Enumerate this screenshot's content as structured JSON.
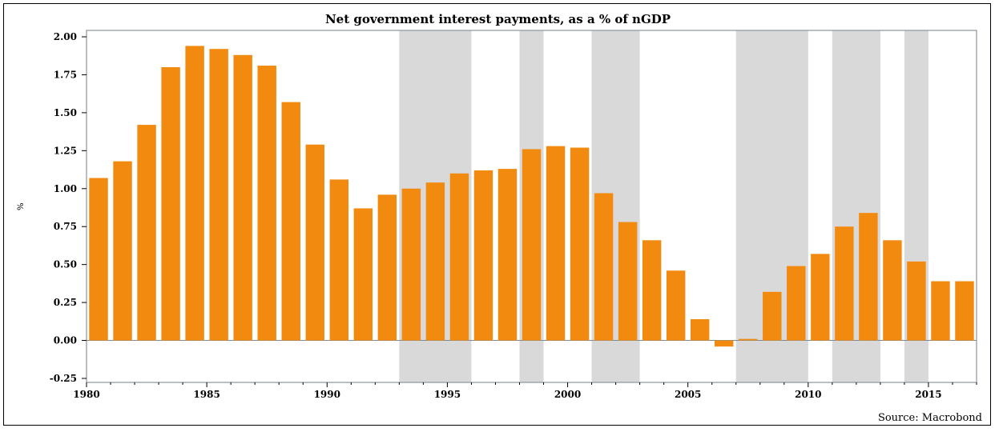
{
  "chart_data": {
    "type": "bar",
    "title": "Net government interest payments, as a % of nGDP",
    "ylabel": "%",
    "source": "Source: Macrobond",
    "ylim": [
      -0.25,
      2.0
    ],
    "xlim": [
      1980,
      2017
    ],
    "yticks": [
      "2.00",
      "1.75",
      "1.50",
      "1.25",
      "1.00",
      "0.75",
      "0.50",
      "0.25",
      "0.00",
      "-0.25"
    ],
    "xticks": [
      "1980",
      "1985",
      "1990",
      "1995",
      "2000",
      "2005",
      "2010",
      "2015"
    ],
    "bar_color": "#F28A0F",
    "shade_color": "#D9D9D9",
    "shaded_periods": [
      [
        1993,
        1996
      ],
      [
        1998,
        1999
      ],
      [
        2001,
        2003
      ],
      [
        2007,
        2010
      ],
      [
        2011,
        2013
      ],
      [
        2014,
        2015
      ]
    ],
    "categories": [
      1980,
      1981,
      1982,
      1983,
      1984,
      1985,
      1986,
      1987,
      1988,
      1989,
      1990,
      1991,
      1992,
      1993,
      1994,
      1995,
      1996,
      1997,
      1998,
      1999,
      2000,
      2001,
      2002,
      2003,
      2004,
      2005,
      2006,
      2007,
      2008,
      2009,
      2010,
      2011,
      2012,
      2013,
      2014,
      2015,
      2016
    ],
    "values": [
      1.07,
      1.18,
      1.42,
      1.8,
      1.94,
      1.92,
      1.88,
      1.81,
      1.57,
      1.29,
      1.06,
      0.87,
      0.96,
      1.0,
      1.04,
      1.1,
      1.12,
      1.13,
      1.26,
      1.28,
      1.27,
      0.97,
      0.78,
      0.66,
      0.46,
      0.14,
      -0.04,
      0.01,
      0.32,
      0.49,
      0.57,
      0.75,
      0.84,
      0.66,
      0.52,
      0.39,
      0.39
    ]
  }
}
